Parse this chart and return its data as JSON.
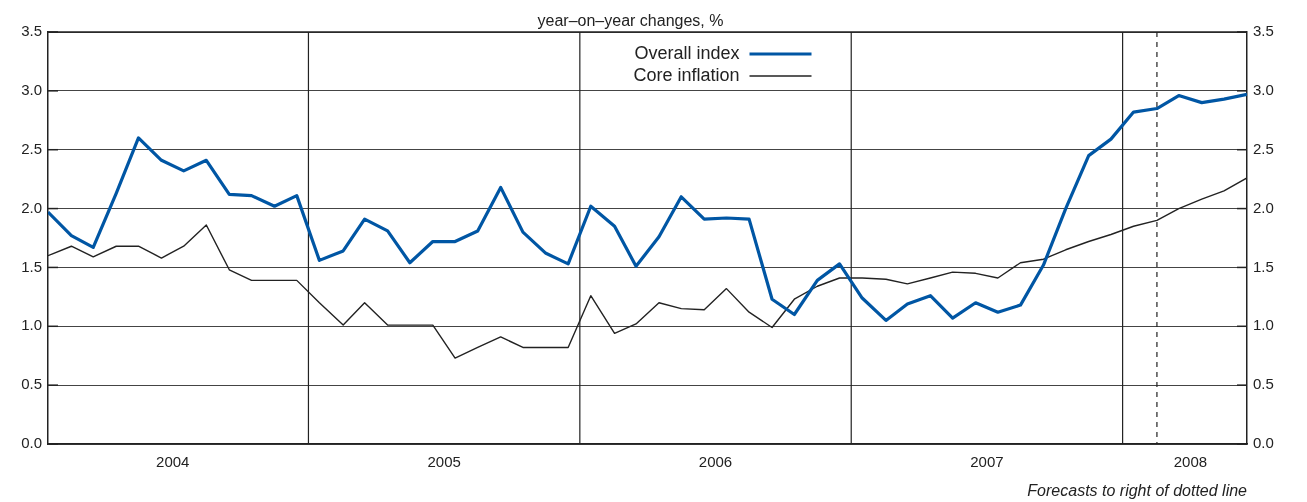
{
  "chart_data": {
    "type": "line",
    "ylabel": "year–on–year changes, %",
    "x": [
      "2004-01-16",
      "2004-02-16",
      "2004-03-16",
      "2004-04-16",
      "2004-05-16",
      "2004-06-16",
      "2004-07-16",
      "2004-08-16",
      "2004-09-16",
      "2004-10-16",
      "2004-11-16",
      "2004-12-16",
      "2005-01-16",
      "2005-02-16",
      "2005-03-16",
      "2005-04-16",
      "2005-05-16",
      "2005-06-16",
      "2005-07-16",
      "2005-08-16",
      "2005-09-16",
      "2005-10-16",
      "2005-11-16",
      "2005-12-16",
      "2006-01-16",
      "2006-02-16",
      "2006-03-16",
      "2006-04-16",
      "2006-05-16",
      "2006-06-16",
      "2006-07-16",
      "2006-08-16",
      "2006-09-16",
      "2006-10-16",
      "2006-11-16",
      "2006-12-16",
      "2007-01-16",
      "2007-02-16",
      "2007-03-16",
      "2007-04-16",
      "2007-05-16",
      "2007-06-16",
      "2007-07-16",
      "2007-08-16",
      "2007-09-16",
      "2007-10-16",
      "2007-11-16",
      "2007-12-16",
      "2008-01-16",
      "2008-02-16",
      "2008-03-16",
      "2008-04-16",
      "2008-05-16",
      "2008-06-16"
    ],
    "series": [
      {
        "name": "Overall index",
        "color": "#0056a4",
        "values": [
          1.97,
          1.77,
          1.67,
          2.13,
          2.6,
          2.41,
          2.32,
          2.41,
          2.12,
          2.11,
          2.02,
          2.11,
          1.56,
          1.64,
          1.91,
          1.81,
          1.54,
          1.72,
          1.72,
          1.81,
          2.18,
          1.8,
          1.62,
          1.53,
          2.02,
          1.85,
          1.51,
          1.76,
          2.1,
          1.91,
          1.92,
          1.91,
          1.23,
          1.1,
          1.39,
          1.53,
          1.24,
          1.05,
          1.19,
          1.26,
          1.07,
          1.2,
          1.12,
          1.18,
          1.52,
          2.0,
          2.45,
          2.59,
          2.82,
          2.85,
          2.96,
          2.9,
          2.93,
          2.97
        ]
      },
      {
        "name": "Core inflation",
        "color": "#222222",
        "values": [
          1.6,
          1.68,
          1.59,
          1.68,
          1.68,
          1.58,
          1.68,
          1.86,
          1.48,
          1.39,
          1.39,
          1.39,
          1.2,
          1.01,
          1.2,
          1.01,
          1.01,
          1.01,
          0.73,
          0.82,
          0.91,
          0.82,
          0.82,
          0.82,
          1.26,
          0.94,
          1.02,
          1.2,
          1.15,
          1.14,
          1.32,
          1.12,
          0.99,
          1.23,
          1.34,
          1.41,
          1.41,
          1.4,
          1.36,
          1.41,
          1.46,
          1.45,
          1.41,
          1.54,
          1.57,
          1.65,
          1.72,
          1.78,
          1.85,
          1.9,
          2.0,
          2.08,
          2.15,
          2.26
        ]
      }
    ],
    "xlim": [
      "2004-01-16",
      "2008-06-16"
    ],
    "xticks": [
      {
        "value": "2004-07-01",
        "label": "2004"
      },
      {
        "value": "2005-07-01",
        "label": "2005"
      },
      {
        "value": "2006-07-01",
        "label": "2006"
      },
      {
        "value": "2007-07-01",
        "label": "2007"
      },
      {
        "value": "2008-04-01",
        "label": "2008"
      }
    ],
    "ylim": [
      0,
      3.5
    ],
    "yticks": [
      {
        "value": 0,
        "label": "0.0"
      },
      {
        "value": 0.5,
        "label": "0.5"
      },
      {
        "value": 1,
        "label": "1.0"
      },
      {
        "value": 1.5,
        "label": "1.5"
      },
      {
        "value": 2,
        "label": "2.0"
      },
      {
        "value": 2.5,
        "label": "2.5"
      },
      {
        "value": 3,
        "label": "3.0"
      },
      {
        "value": 3.5,
        "label": "3.5"
      }
    ],
    "y2lim": [
      0,
      3.5
    ],
    "y2ticks": [
      {
        "value": 0,
        "label": "0.0"
      },
      {
        "value": 0.5,
        "label": "0.5"
      },
      {
        "value": 1,
        "label": "1.0"
      },
      {
        "value": 1.5,
        "label": "1.5"
      },
      {
        "value": 2,
        "label": "2.0"
      },
      {
        "value": 2.5,
        "label": "2.5"
      },
      {
        "value": 3,
        "label": "3.0"
      },
      {
        "value": 3.5,
        "label": "3.5"
      }
    ],
    "ref_lines": [
      {
        "axis": "x",
        "value": "2005-01-01",
        "color": "#222222",
        "line_style": "solid"
      },
      {
        "axis": "x",
        "value": "2006-01-01",
        "color": "#222222",
        "line_style": "solid"
      },
      {
        "axis": "x",
        "value": "2007-01-01",
        "color": "#222222",
        "line_style": "solid"
      },
      {
        "axis": "x",
        "value": "2008-01-01",
        "color": "#222222",
        "line_style": "solid"
      },
      {
        "axis": "x",
        "value": "2008-02-16",
        "color": "#222222",
        "line_style": "dashed"
      }
    ],
    "annotations": [
      "Forecasts to right of dotted line"
    ],
    "grid": "y",
    "legend": "top",
    "marker": "none",
    "line_style": "solid"
  }
}
